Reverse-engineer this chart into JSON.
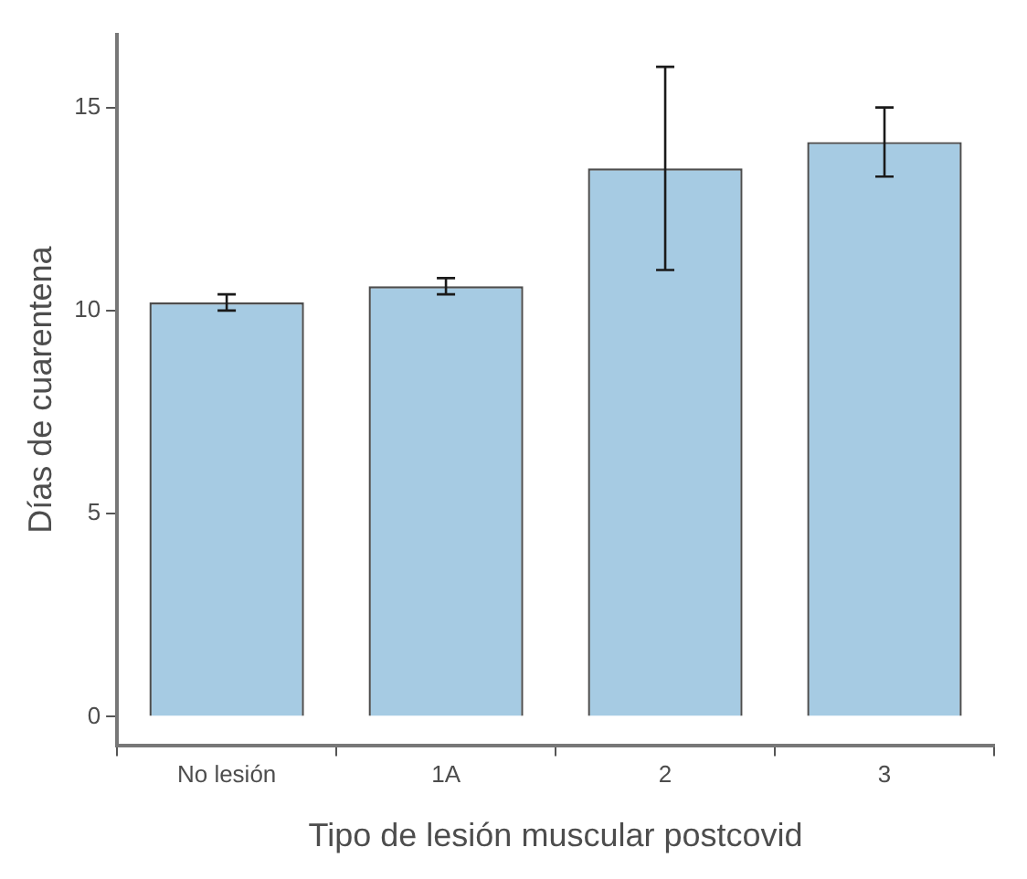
{
  "chart_data": {
    "type": "bar",
    "xlabel": "Tipo de lesión muscular postcovid",
    "ylabel": "Días de cuarentena",
    "categories": [
      "No lesión",
      "1A",
      "2",
      "3"
    ],
    "values": [
      10.2,
      10.6,
      13.5,
      14.15
    ],
    "errors": [
      [
        10.0,
        10.4
      ],
      [
        10.4,
        10.8
      ],
      [
        11.0,
        16.0
      ],
      [
        13.3,
        15.0
      ]
    ],
    "color": "#a6cbe3",
    "ylim": [
      -0.7,
      16.8
    ],
    "yticks": [
      0,
      5,
      10,
      15
    ],
    "grid": false,
    "legend": false
  }
}
